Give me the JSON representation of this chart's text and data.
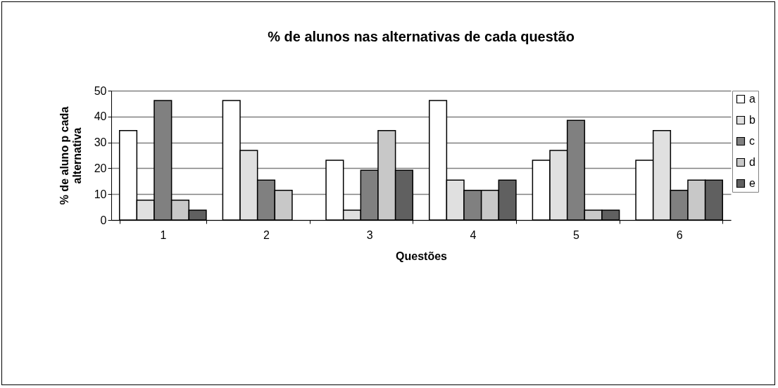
{
  "chart_data": {
    "type": "bar",
    "title": "% de alunos nas alternativas de cada questão",
    "xlabel": "Questões",
    "ylabel": "% de aluno p cada alternativa",
    "categories": [
      "1",
      "2",
      "3",
      "4",
      "5",
      "6"
    ],
    "series": [
      {
        "name": "a",
        "color": "#ffffff",
        "values": [
          34.6,
          46.2,
          23.1,
          46.2,
          23.1,
          23.1
        ]
      },
      {
        "name": "b",
        "color": "#e0e0e0",
        "values": [
          7.7,
          26.9,
          3.8,
          15.4,
          26.9,
          34.6
        ]
      },
      {
        "name": "c",
        "color": "#808080",
        "values": [
          46.2,
          15.4,
          19.2,
          11.5,
          38.5,
          11.5
        ]
      },
      {
        "name": "d",
        "color": "#c8c8c8",
        "values": [
          7.7,
          11.5,
          34.6,
          11.5,
          3.8,
          15.4
        ]
      },
      {
        "name": "e",
        "color": "#606060",
        "values": [
          3.8,
          null,
          19.2,
          15.4,
          3.8,
          15.4
        ]
      }
    ],
    "ylim": [
      0,
      50
    ],
    "yticks": [
      0,
      10,
      20,
      30,
      40,
      50
    ],
    "grid": "y",
    "legend": "right"
  }
}
